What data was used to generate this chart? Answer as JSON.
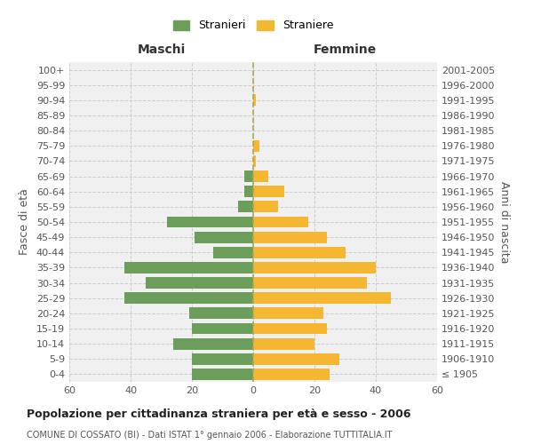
{
  "age_groups": [
    "100+",
    "95-99",
    "90-94",
    "85-89",
    "80-84",
    "75-79",
    "70-74",
    "65-69",
    "60-64",
    "55-59",
    "50-54",
    "45-49",
    "40-44",
    "35-39",
    "30-34",
    "25-29",
    "20-24",
    "15-19",
    "10-14",
    "5-9",
    "0-4"
  ],
  "birth_years": [
    "≤ 1905",
    "1906-1910",
    "1911-1915",
    "1916-1920",
    "1921-1925",
    "1926-1930",
    "1931-1935",
    "1936-1940",
    "1941-1945",
    "1946-1950",
    "1951-1955",
    "1956-1960",
    "1961-1965",
    "1966-1970",
    "1971-1975",
    "1976-1980",
    "1981-1985",
    "1986-1990",
    "1991-1995",
    "1996-2000",
    "2001-2005"
  ],
  "maschi": [
    0,
    0,
    0,
    0,
    0,
    0,
    0,
    3,
    3,
    5,
    28,
    19,
    13,
    42,
    35,
    42,
    21,
    20,
    26,
    20,
    20
  ],
  "femmine": [
    0,
    0,
    1,
    0,
    0,
    2,
    1,
    5,
    10,
    8,
    18,
    24,
    30,
    40,
    37,
    45,
    23,
    24,
    20,
    28,
    25
  ],
  "maschi_color": "#6a9e5a",
  "femmine_color": "#f5b731",
  "title": "Popolazione per cittadinanza straniera per età e sesso - 2006",
  "subtitle": "COMUNE DI COSSATO (BI) - Dati ISTAT 1° gennaio 2006 - Elaborazione TUTTITALIA.IT",
  "xlabel_left": "Maschi",
  "xlabel_right": "Femmine",
  "ylabel_left": "Fasce di età",
  "ylabel_right": "Anni di nascita",
  "xlim": 60,
  "legend_stranieri": "Stranieri",
  "legend_straniere": "Straniere",
  "bg_color": "#ffffff",
  "plot_bg_color": "#f0f0f0",
  "grid_color": "#cccccc",
  "bar_height": 0.75
}
